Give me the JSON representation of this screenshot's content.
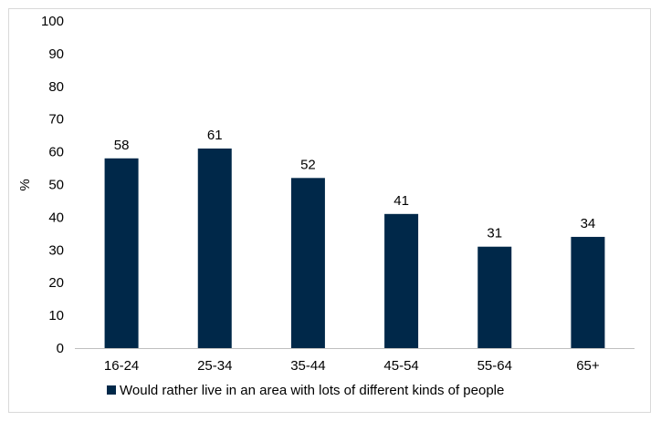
{
  "chart_data": {
    "type": "bar",
    "categories": [
      "16-24",
      "25-34",
      "35-44",
      "45-54",
      "55-64",
      "65+"
    ],
    "series": [
      {
        "name": "Would rather live in an area with lots of different kinds of people",
        "values": [
          58,
          61,
          52,
          41,
          31,
          34
        ],
        "color": "#002849"
      }
    ],
    "ylabel": "%",
    "ylim": [
      0,
      100
    ],
    "yticks": [
      0,
      10,
      20,
      30,
      40,
      50,
      60,
      70,
      80,
      90,
      100
    ],
    "grid": false,
    "legend_position": "bottom",
    "data_labels": true
  }
}
